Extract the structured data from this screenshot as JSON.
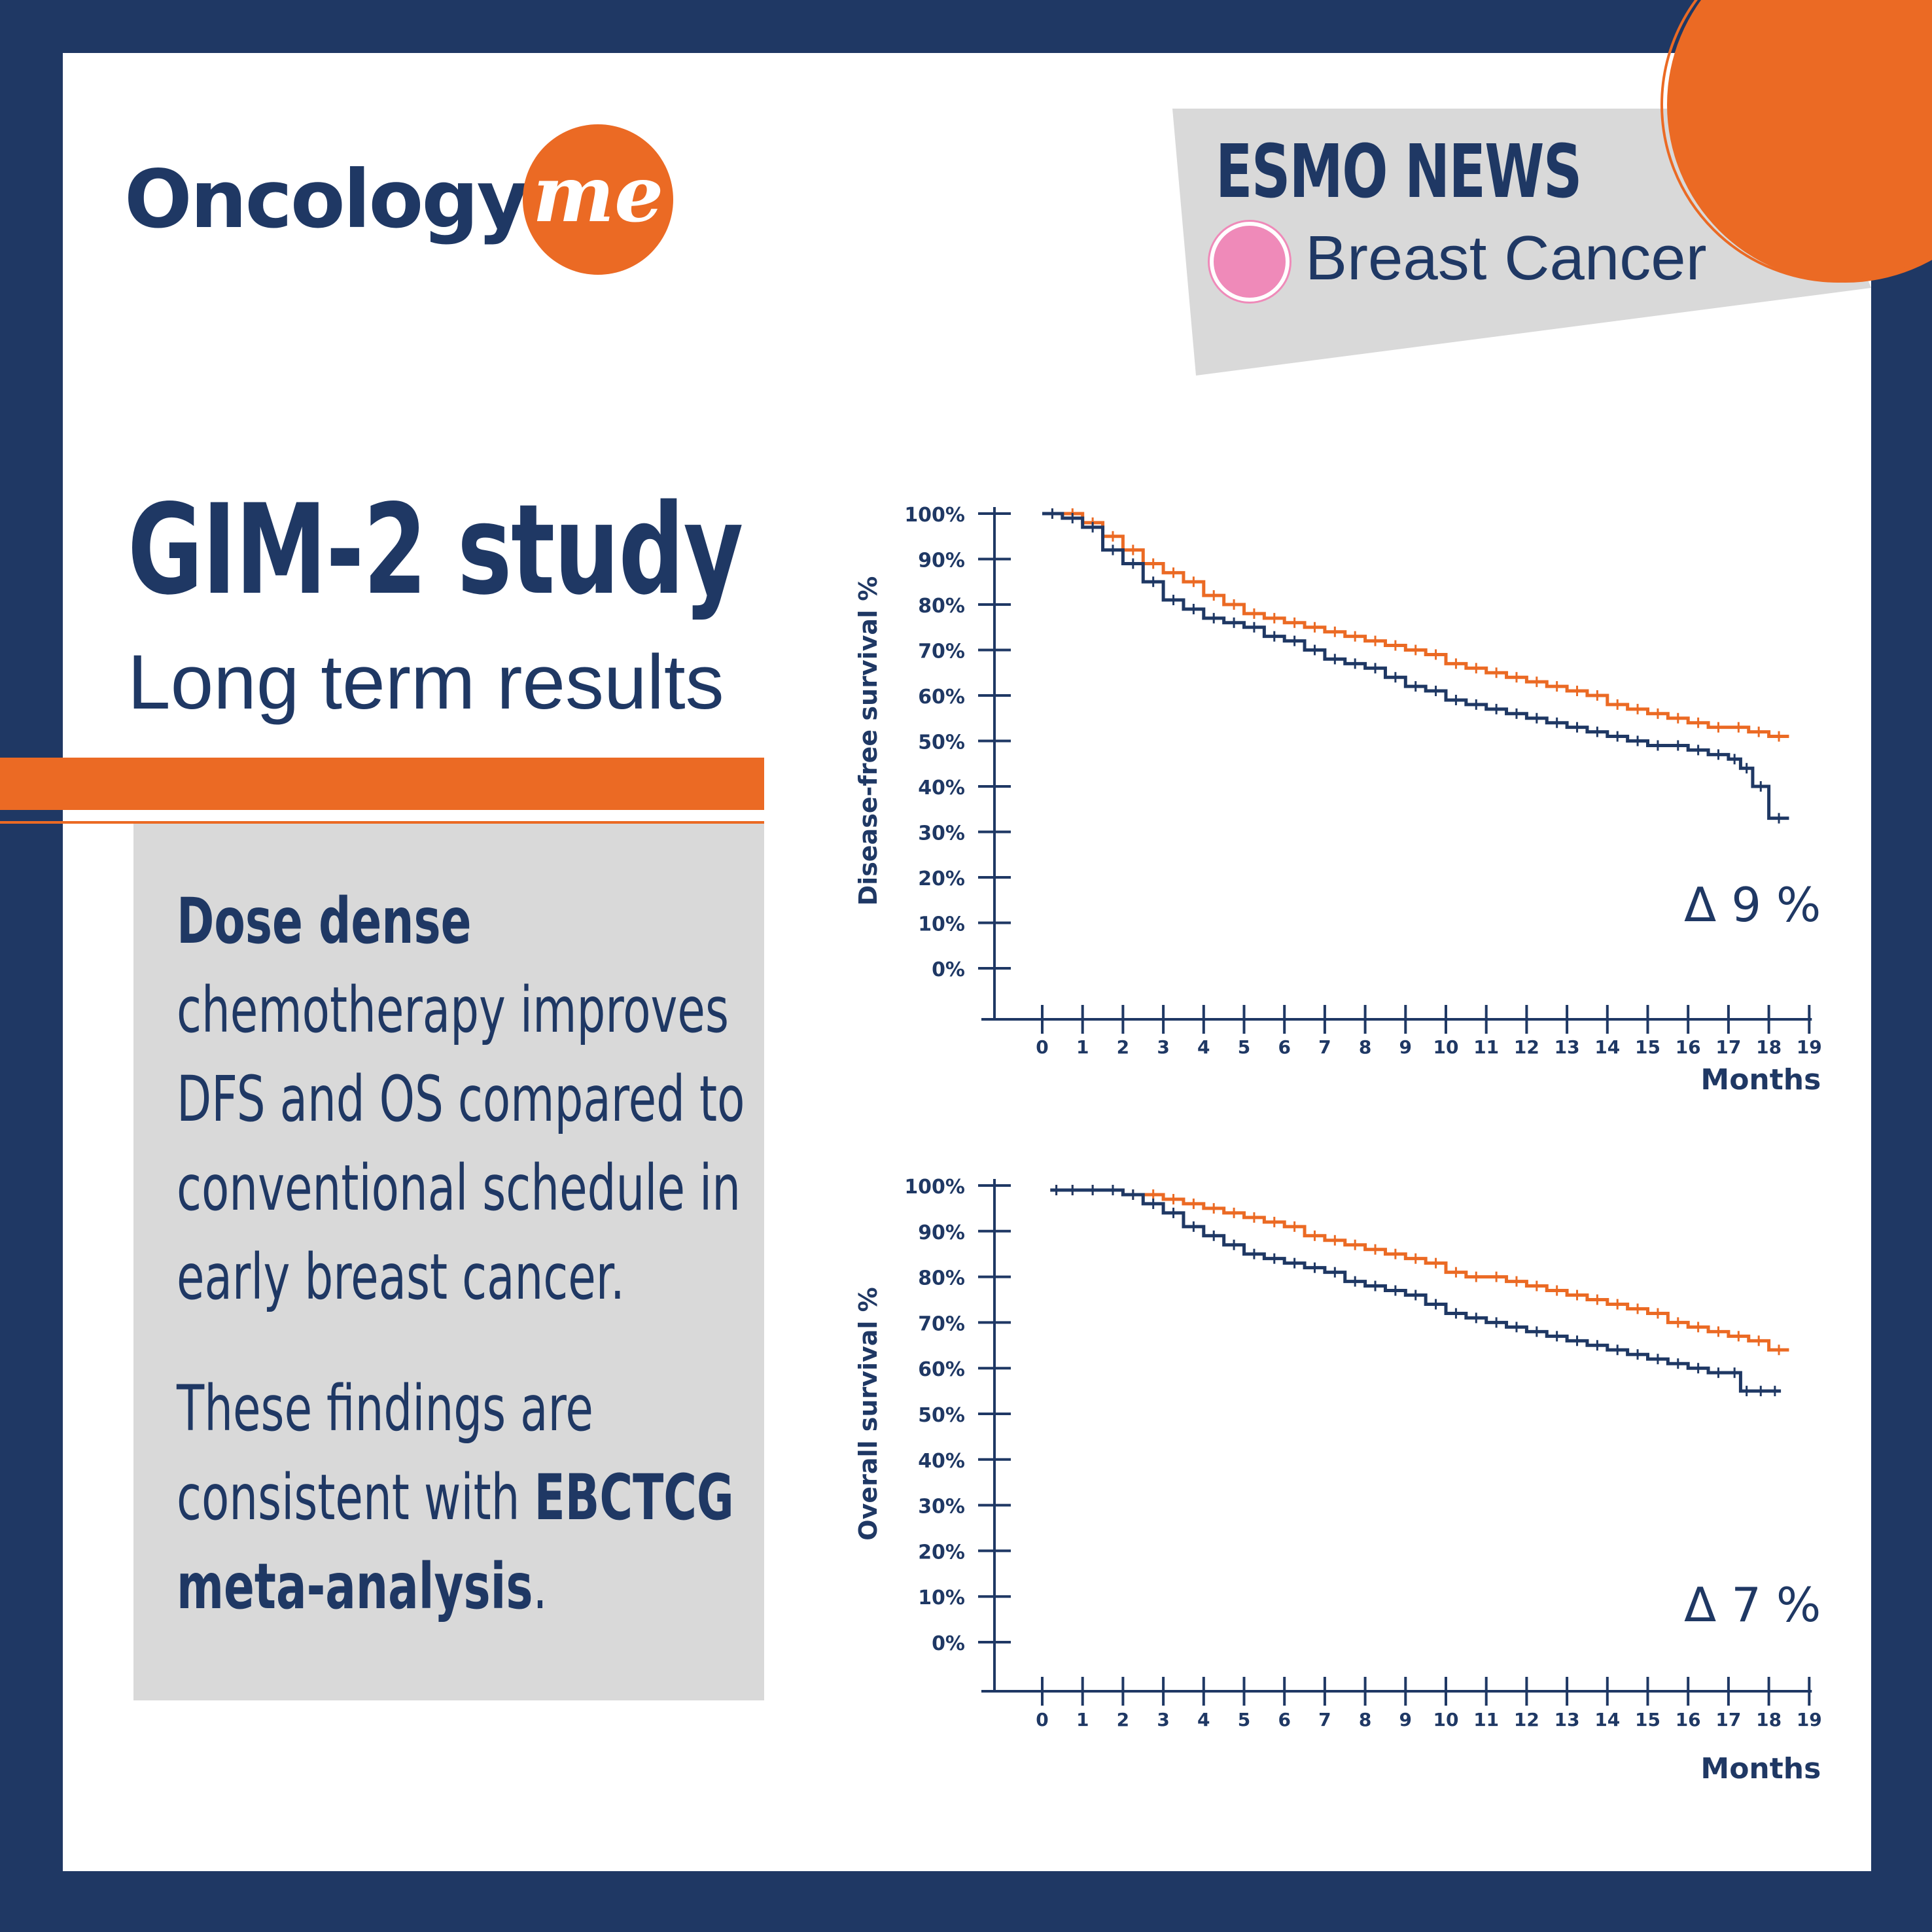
{
  "logo": {
    "text": "Oncology",
    "badge": "me"
  },
  "news": {
    "title": "ESMO NEWS",
    "topic": "Breast Cancer"
  },
  "study": {
    "title": "GIM-2 study",
    "subtitle": "Long term results"
  },
  "summary": {
    "p1_bold": "Dose dense",
    "p1_rest": " chemotherapy improves DFS and OS compared to conventional schedule in early breast cancer.",
    "p2_start": "These findings are consistent with ",
    "p2_bold": "EBCTCG meta-analysis",
    "p2_end": "."
  },
  "colors": {
    "navy": "#1f3864",
    "orange": "#eb6a24",
    "gray": "#d9d9d9",
    "pink": "#ef8ab9"
  },
  "chart_data": [
    {
      "type": "line",
      "ylabel": "Disease-free survival %",
      "xlabel": "Months",
      "delta": "Δ 9 %",
      "x_ticks": [
        0,
        1,
        2,
        3,
        4,
        5,
        6,
        7,
        8,
        9,
        10,
        11,
        12,
        13,
        14,
        15,
        16,
        17,
        18,
        19
      ],
      "y_ticks": [
        "100%",
        "90%",
        "80%",
        "70%",
        "60%",
        "50%",
        "40%",
        "30%",
        "20%",
        "10%",
        "0%"
      ],
      "xlim": [
        0,
        19
      ],
      "ylim": [
        0,
        100
      ],
      "series": [
        {
          "color": "#eb6a24",
          "x": [
            0,
            0.5,
            1,
            1.5,
            2,
            2.5,
            3,
            3.5,
            4,
            4.5,
            5,
            5.5,
            6,
            6.5,
            7,
            7.5,
            8,
            8.5,
            9,
            9.5,
            10,
            10.5,
            11,
            11.5,
            12,
            12.5,
            13,
            13.5,
            14,
            14.5,
            15,
            15.5,
            16,
            16.5,
            17,
            17.5,
            18,
            18.5
          ],
          "y": [
            100,
            100,
            98,
            95,
            92,
            89,
            87,
            85,
            82,
            80,
            78,
            77,
            76,
            75,
            74,
            73,
            72,
            71,
            70,
            69,
            67,
            66,
            65,
            64,
            63,
            62,
            61,
            60,
            58,
            57,
            56,
            55,
            54,
            53,
            53,
            52,
            51,
            51
          ]
        },
        {
          "color": "#1f3864",
          "x": [
            0,
            0.5,
            1,
            1.5,
            2,
            2.5,
            3,
            3.5,
            4,
            4.5,
            5,
            5.5,
            6,
            6.5,
            7,
            7.5,
            8,
            8.5,
            9,
            9.5,
            10,
            10.5,
            11,
            11.5,
            12,
            12.5,
            13,
            13.5,
            14,
            14.5,
            15,
            15.5,
            16,
            16.5,
            17,
            17.3,
            17.6,
            18,
            18.5
          ],
          "y": [
            100,
            99,
            97,
            92,
            89,
            85,
            81,
            79,
            77,
            76,
            75,
            73,
            72,
            70,
            68,
            67,
            66,
            64,
            62,
            61,
            59,
            58,
            57,
            56,
            55,
            54,
            53,
            52,
            51,
            50,
            49,
            49,
            48,
            47,
            46,
            44,
            40,
            33,
            33
          ]
        }
      ]
    },
    {
      "type": "line",
      "ylabel": "Overall survival %",
      "xlabel": "Months",
      "delta": "Δ 7 %",
      "x_ticks": [
        0,
        1,
        2,
        3,
        4,
        5,
        6,
        7,
        8,
        9,
        10,
        11,
        12,
        13,
        14,
        15,
        16,
        17,
        18,
        19
      ],
      "y_ticks": [
        "100%",
        "90%",
        "80%",
        "70%",
        "60%",
        "50%",
        "40%",
        "30%",
        "20%",
        "10%",
        "0%"
      ],
      "xlim": [
        0,
        19
      ],
      "ylim": [
        0,
        100
      ],
      "series": [
        {
          "color": "#eb6a24",
          "x": [
            0.2,
            0.5,
            1,
            1.5,
            2,
            2.5,
            3,
            3.5,
            4,
            4.5,
            5,
            5.5,
            6,
            6.5,
            7,
            7.5,
            8,
            8.5,
            9,
            9.5,
            10,
            10.5,
            11,
            11.5,
            12,
            12.5,
            13,
            13.5,
            14,
            14.5,
            15,
            15.5,
            16,
            16.5,
            17,
            17.5,
            18,
            18.5
          ],
          "y": [
            99,
            99,
            99,
            99,
            98,
            98,
            97,
            96,
            95,
            94,
            93,
            92,
            91,
            89,
            88,
            87,
            86,
            85,
            84,
            83,
            81,
            80,
            80,
            79,
            78,
            77,
            76,
            75,
            74,
            73,
            72,
            70,
            69,
            68,
            67,
            66,
            64,
            64
          ]
        },
        {
          "color": "#1f3864",
          "x": [
            0.2,
            0.5,
            1,
            1.5,
            2,
            2.5,
            3,
            3.5,
            4,
            4.5,
            5,
            5.5,
            6,
            6.5,
            7,
            7.5,
            8,
            8.5,
            9,
            9.5,
            10,
            10.5,
            11,
            11.5,
            12,
            12.5,
            13,
            13.5,
            14,
            14.5,
            15,
            15.5,
            16,
            16.5,
            17,
            17.3,
            17.6,
            18,
            18.3
          ],
          "y": [
            99,
            99,
            99,
            99,
            98,
            96,
            94,
            91,
            89,
            87,
            85,
            84,
            83,
            82,
            81,
            79,
            78,
            77,
            76,
            74,
            72,
            71,
            70,
            69,
            68,
            67,
            66,
            65,
            64,
            63,
            62,
            61,
            60,
            59,
            59,
            55,
            55,
            55,
            55
          ]
        }
      ]
    }
  ]
}
